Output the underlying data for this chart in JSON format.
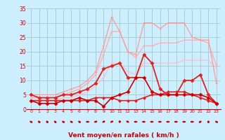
{
  "bg_color": "#cceeff",
  "grid_color": "#aacccc",
  "text_color": "#cc0000",
  "xlabel": "Vent moyen/en rafales ( km/h )",
  "xlim": [
    -0.5,
    23.5
  ],
  "ylim": [
    0,
    35
  ],
  "yticks": [
    0,
    5,
    10,
    15,
    20,
    25,
    30,
    35
  ],
  "xticks": [
    0,
    1,
    2,
    3,
    4,
    5,
    6,
    7,
    8,
    9,
    10,
    11,
    12,
    13,
    14,
    15,
    16,
    17,
    18,
    19,
    20,
    21,
    22,
    23
  ],
  "series": [
    {
      "x": [
        0,
        1,
        2,
        3,
        4,
        5,
        6,
        7,
        8,
        9,
        10,
        11,
        12,
        13,
        14,
        15,
        16,
        17,
        18,
        19,
        20,
        21,
        22,
        23
      ],
      "y": [
        3,
        3,
        3,
        3,
        4,
        4,
        5,
        6,
        8,
        11,
        16,
        16,
        13,
        12,
        16,
        16,
        16,
        16,
        16,
        17,
        17,
        17,
        17,
        14
      ],
      "color": "#ffbbcc",
      "lw": 0.9,
      "marker": null,
      "ms": 0
    },
    {
      "x": [
        0,
        1,
        2,
        3,
        4,
        5,
        6,
        7,
        8,
        9,
        10,
        11,
        12,
        13,
        14,
        15,
        16,
        17,
        18,
        19,
        20,
        21,
        22,
        23
      ],
      "y": [
        4,
        4,
        4,
        4,
        5,
        6,
        7,
        9,
        12,
        19,
        27,
        27,
        20,
        18,
        22,
        22,
        23,
        23,
        23,
        24,
        24,
        24,
        23,
        15
      ],
      "color": "#ffaaaa",
      "lw": 0.9,
      "marker": "+",
      "ms": 3
    },
    {
      "x": [
        0,
        1,
        2,
        3,
        4,
        5,
        6,
        7,
        8,
        9,
        10,
        11,
        12,
        13,
        14,
        15,
        16,
        17,
        18,
        19,
        20,
        21,
        22,
        23
      ],
      "y": [
        5,
        5,
        5,
        5,
        6,
        7,
        8,
        10,
        13,
        22,
        32,
        27,
        20,
        19,
        30,
        30,
        28,
        30,
        30,
        30,
        25,
        24,
        24,
        9
      ],
      "color": "#ff9999",
      "lw": 0.9,
      "marker": "+",
      "ms": 3.5
    },
    {
      "x": [
        0,
        1,
        2,
        3,
        4,
        5,
        6,
        7,
        8,
        9,
        10,
        11,
        12,
        13,
        14,
        15,
        16,
        17,
        18,
        19,
        20,
        21,
        22,
        23
      ],
      "y": [
        3,
        3,
        3,
        3,
        3,
        3,
        3,
        3,
        4,
        4,
        4,
        3,
        3,
        3,
        4,
        5,
        5,
        6,
        6,
        6,
        5,
        4,
        3,
        2
      ],
      "color": "#dd2222",
      "lw": 1.2,
      "marker": "D",
      "ms": 2
    },
    {
      "x": [
        0,
        1,
        2,
        3,
        4,
        5,
        6,
        7,
        8,
        9,
        10,
        11,
        12,
        13,
        14,
        15,
        16,
        17,
        18,
        19,
        20,
        21,
        22,
        23
      ],
      "y": [
        5,
        4,
        4,
        4,
        5,
        5,
        6,
        7,
        9,
        14,
        15,
        16,
        11,
        11,
        19,
        16,
        7,
        5,
        5,
        10,
        10,
        12,
        5,
        2
      ],
      "color": "#dd2222",
      "lw": 1.3,
      "marker": "D",
      "ms": 2.5
    },
    {
      "x": [
        0,
        1,
        2,
        3,
        4,
        5,
        6,
        7,
        8,
        9,
        10,
        11,
        12,
        13,
        14,
        15,
        16,
        17,
        18,
        19,
        20,
        21,
        22,
        23
      ],
      "y": [
        3,
        2,
        2,
        2,
        3,
        3,
        4,
        3,
        3,
        1,
        4,
        5,
        6,
        11,
        11,
        6,
        5,
        5,
        5,
        5,
        5,
        5,
        4,
        2
      ],
      "color": "#cc0000",
      "lw": 1.2,
      "marker": "D",
      "ms": 2.5
    }
  ],
  "wind_angles": [
    225,
    210,
    200,
    210,
    220,
    225,
    215,
    270,
    300,
    315,
    315,
    0,
    45,
    90,
    90,
    90,
    90,
    90,
    90,
    90,
    90,
    135,
    180,
    225
  ]
}
